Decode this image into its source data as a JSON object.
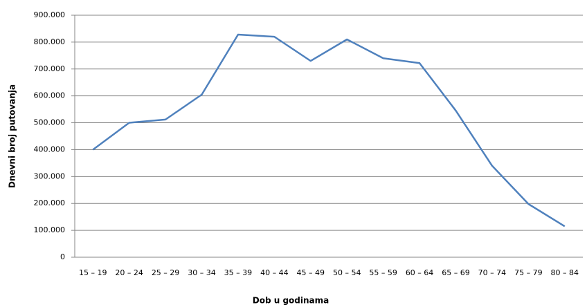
{
  "chart_data": {
    "type": "line",
    "xlabel": "Dob u godinama",
    "ylabel": "Dnevni broj putovanja",
    "categories": [
      "15 – 19",
      "20 – 24",
      "25 – 29",
      "30 – 34",
      "35 – 39",
      "40 – 44",
      "45 – 49",
      "50 – 54",
      "55 – 59",
      "60 – 64",
      "65 – 69",
      "70 – 74",
      "75 – 79",
      "80 – 84"
    ],
    "values": [
      400000,
      500000,
      512000,
      605000,
      828000,
      820000,
      730000,
      810000,
      740000,
      722000,
      545000,
      340000,
      198000,
      115000
    ],
    "color": "#4f81bd",
    "ylim": [
      0,
      900000
    ],
    "yticks": [
      0,
      {
        "value": 100000,
        "label": "100.000"
      },
      {
        "value": 200000,
        "label": "200.000"
      },
      {
        "value": 300000,
        "label": "300.000"
      },
      {
        "value": 400000,
        "label": "400.000"
      },
      {
        "value": 500000,
        "label": "500.000"
      },
      {
        "value": 600000,
        "label": "600.000"
      },
      {
        "value": 700000,
        "label": "700.000"
      },
      {
        "value": 800000,
        "label": "800.000"
      },
      {
        "value": 900000,
        "label": "900.000"
      }
    ],
    "grid": true
  }
}
